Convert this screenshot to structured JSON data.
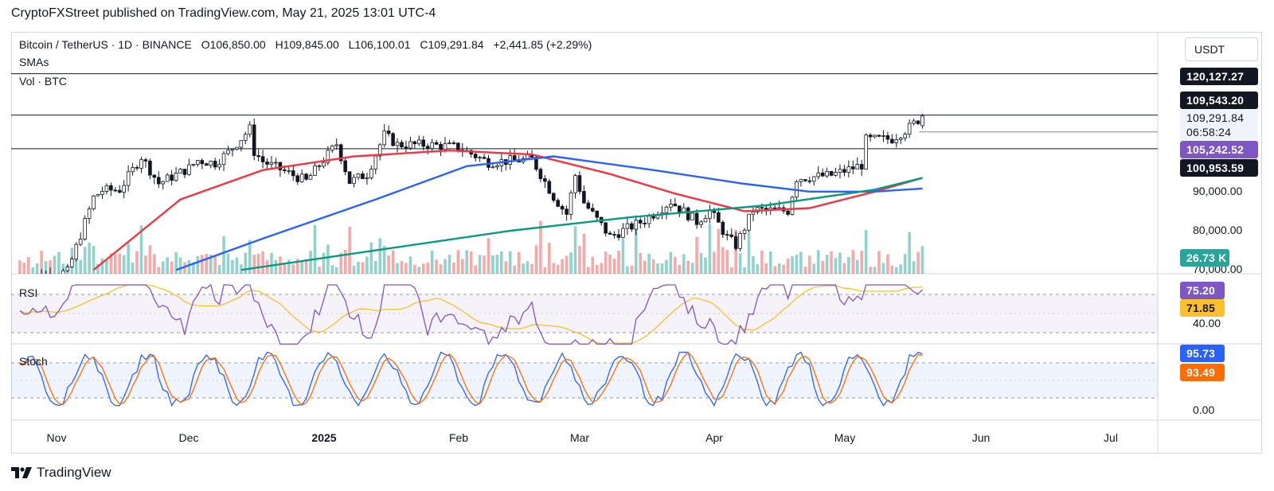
{
  "header": {
    "publisher": "CryptoFXStreet published on TradingView.com, May 21, 2025 13:01 UTC-4"
  },
  "symbol_info": {
    "symbol": "Bitcoin / TetherUS · 1D · BINANCE",
    "open": "O106,850.00",
    "high": "H109,845.00",
    "low": "L106,100.01",
    "close": "C109,291.84",
    "change": "+2,441.85 (+2.29%)"
  },
  "indicators": {
    "sma": "SMAs",
    "volume": "Vol · BTC",
    "rsi": "RSI",
    "stoch": "Stoch"
  },
  "unit_button": {
    "label": "USDT"
  },
  "price_tags": {
    "t120": "120,127.27",
    "t109543": "109,543.20",
    "t_current": "109,291.84",
    "countdown": "06:58:24",
    "t105": "105,242.52",
    "t100": "100,953.59",
    "vol": "26.73 K",
    "rsi_val": "75.20",
    "rsi_ma": "71.85",
    "stoch_k": "95.73",
    "stoch_d": "93.49"
  },
  "axis": {
    "p90": "90,000.00",
    "p80": "80,000.00",
    "p70": "70,000.00",
    "rsi40": "40.00",
    "stoch0": "0.00"
  },
  "months": {
    "nov": "Nov",
    "dec": "Dec",
    "y2025": "2025",
    "feb": "Feb",
    "mar": "Mar",
    "apr": "Apr",
    "may": "May",
    "jun": "Jun",
    "jul": "Jul"
  },
  "footer": {
    "brand": "TradingView"
  },
  "colors": {
    "up": "#26a69a",
    "down": "#ef5350",
    "sma_red": "#f23645",
    "sma_blue": "#2962ff",
    "sma_green": "#089981",
    "rsi": "#7e57c2",
    "rsi_ma": "#fbc02d",
    "stoch_k": "#2962ff",
    "stoch_d": "#ff6d00"
  },
  "chart_data": {
    "type": "candlestick",
    "symbol": "BTCUSDT",
    "interval": "1D",
    "x_range": [
      "2024-10-23",
      "2025-07-26"
    ],
    "y_range": [
      70000,
      121000
    ],
    "last_bar": {
      "date": "2025-05-21",
      "open": 106850.0,
      "high": 109845.0,
      "low": 106100.01,
      "close": 109291.84
    },
    "horizontal_levels": [
      120127.27,
      109543.2,
      100953.59
    ],
    "close_path": [
      {
        "x": "2024-10-25",
        "y": 68000
      },
      {
        "x": "2024-11-05",
        "y": 69500
      },
      {
        "x": "2024-11-07",
        "y": 75800
      },
      {
        "x": "2024-11-11",
        "y": 88500
      },
      {
        "x": "2024-11-13",
        "y": 90300
      },
      {
        "x": "2024-11-17",
        "y": 90500
      },
      {
        "x": "2024-11-22",
        "y": 98900
      },
      {
        "x": "2024-11-26",
        "y": 92100
      },
      {
        "x": "2024-12-03",
        "y": 96000
      },
      {
        "x": "2024-12-05",
        "y": 98000
      },
      {
        "x": "2024-12-09",
        "y": 97300
      },
      {
        "x": "2024-12-12",
        "y": 100000
      },
      {
        "x": "2024-12-17",
        "y": 106000
      },
      {
        "x": "2024-12-18",
        "y": 100200
      },
      {
        "x": "2024-12-20",
        "y": 97700
      },
      {
        "x": "2024-12-27",
        "y": 94200
      },
      {
        "x": "2024-12-30",
        "y": 92700
      },
      {
        "x": "2025-01-06",
        "y": 102200
      },
      {
        "x": "2025-01-09",
        "y": 92500
      },
      {
        "x": "2025-01-13",
        "y": 94500
      },
      {
        "x": "2025-01-17",
        "y": 104500
      },
      {
        "x": "2025-01-20",
        "y": 102000
      },
      {
        "x": "2025-01-27",
        "y": 102000
      },
      {
        "x": "2025-02-03",
        "y": 101300
      },
      {
        "x": "2025-02-10",
        "y": 97500
      },
      {
        "x": "2025-02-20",
        "y": 98300
      },
      {
        "x": "2025-02-25",
        "y": 88700
      },
      {
        "x": "2025-02-28",
        "y": 84300
      },
      {
        "x": "2025-03-02",
        "y": 94200
      },
      {
        "x": "2025-03-04",
        "y": 87200
      },
      {
        "x": "2025-03-10",
        "y": 78500
      },
      {
        "x": "2025-03-18",
        "y": 82700
      },
      {
        "x": "2025-03-24",
        "y": 87500
      },
      {
        "x": "2025-03-30",
        "y": 82300
      },
      {
        "x": "2025-04-02",
        "y": 85200
      },
      {
        "x": "2025-04-06",
        "y": 78300
      },
      {
        "x": "2025-04-08",
        "y": 76300
      },
      {
        "x": "2025-04-12",
        "y": 85300
      },
      {
        "x": "2025-04-20",
        "y": 85100
      },
      {
        "x": "2025-04-22",
        "y": 93400
      },
      {
        "x": "2025-04-30",
        "y": 94200
      },
      {
        "x": "2025-05-07",
        "y": 96800
      },
      {
        "x": "2025-05-08",
        "y": 103200
      },
      {
        "x": "2025-05-14",
        "y": 103500
      },
      {
        "x": "2025-05-18",
        "y": 106400
      },
      {
        "x": "2025-05-21",
        "y": 109291.84
      }
    ],
    "series": [
      {
        "name": "SMA (red)",
        "color": "#f23645",
        "points": [
          {
            "x": "2024-11-11",
            "y": 70000
          },
          {
            "x": "2024-12-01",
            "y": 88000
          },
          {
            "x": "2024-12-20",
            "y": 95500
          },
          {
            "x": "2025-01-10",
            "y": 99000
          },
          {
            "x": "2025-02-01",
            "y": 100500
          },
          {
            "x": "2025-02-20",
            "y": 99500
          },
          {
            "x": "2025-03-10",
            "y": 94500
          },
          {
            "x": "2025-03-25",
            "y": 89500
          },
          {
            "x": "2025-04-10",
            "y": 85000
          },
          {
            "x": "2025-04-25",
            "y": 85800
          },
          {
            "x": "2025-05-10",
            "y": 90000
          },
          {
            "x": "2025-05-21",
            "y": 93500
          }
        ]
      },
      {
        "name": "SMA (blue)",
        "color": "#2962ff",
        "points": [
          {
            "x": "2024-11-30",
            "y": 70000
          },
          {
            "x": "2024-12-20",
            "y": 78000
          },
          {
            "x": "2025-01-15",
            "y": 88000
          },
          {
            "x": "2025-02-05",
            "y": 96500
          },
          {
            "x": "2025-02-25",
            "y": 99000
          },
          {
            "x": "2025-03-20",
            "y": 95500
          },
          {
            "x": "2025-04-10",
            "y": 92000
          },
          {
            "x": "2025-04-25",
            "y": 90000
          },
          {
            "x": "2025-05-10",
            "y": 90000
          },
          {
            "x": "2025-05-21",
            "y": 90800
          }
        ]
      },
      {
        "name": "SMA (green)",
        "color": "#089981",
        "points": [
          {
            "x": "2024-12-15",
            "y": 70000
          },
          {
            "x": "2025-01-15",
            "y": 75000
          },
          {
            "x": "2025-02-15",
            "y": 80000
          },
          {
            "x": "2025-03-15",
            "y": 83500
          },
          {
            "x": "2025-04-15",
            "y": 86500
          },
          {
            "x": "2025-05-10",
            "y": 90500
          },
          {
            "x": "2025-05-21",
            "y": 93500
          }
        ]
      }
    ],
    "rsi": {
      "value": 75.2,
      "ma": 71.85,
      "upper": 70,
      "lower": 30,
      "axis_label": 40
    },
    "stoch": {
      "k": 95.73,
      "d": 93.49,
      "upper": 80,
      "lower": 20
    },
    "volume_last": "26.73 K",
    "x_tick_labels": [
      "Nov",
      "Dec",
      "2025",
      "Feb",
      "Mar",
      "Apr",
      "May",
      "Jun",
      "Jul"
    ]
  }
}
